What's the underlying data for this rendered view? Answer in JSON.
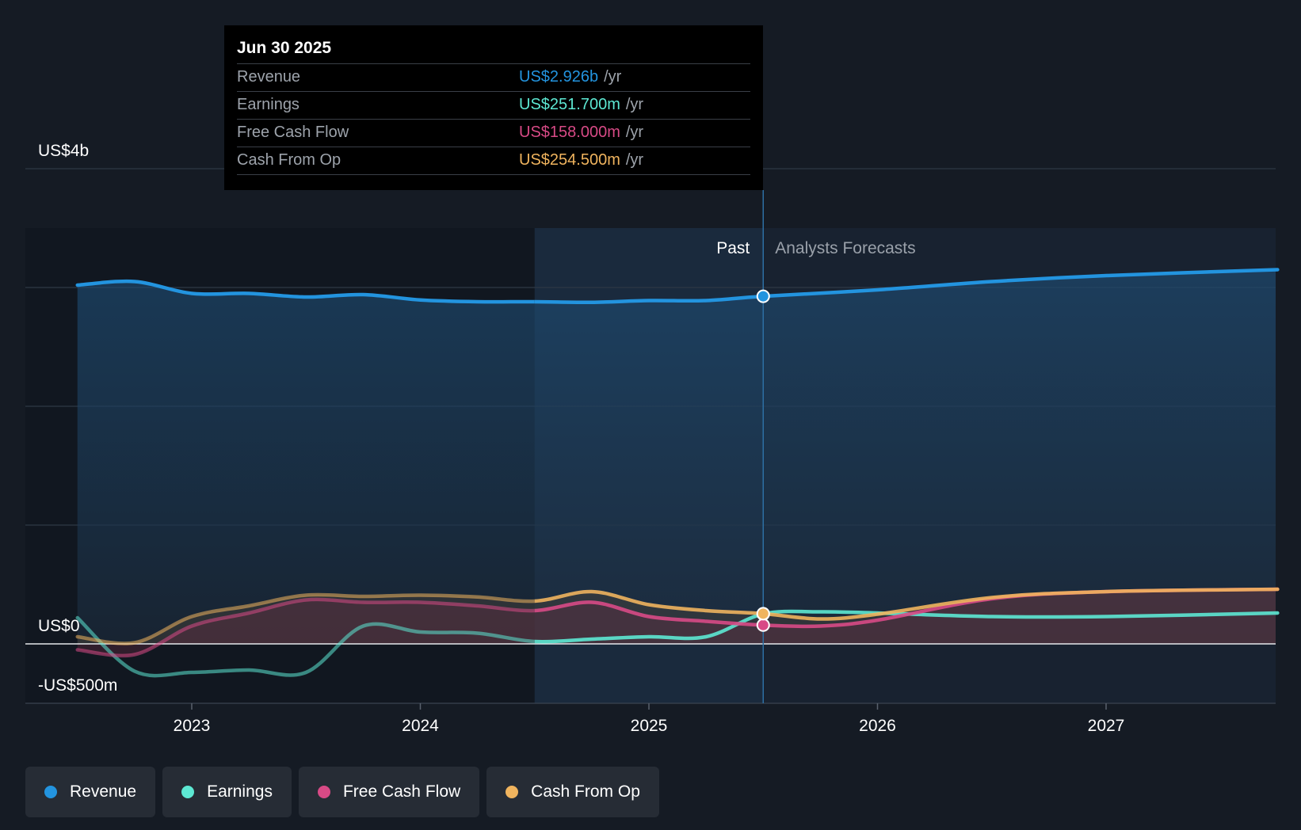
{
  "tooltip": {
    "date": "Jun 30 2025",
    "rows": [
      {
        "label": "Revenue",
        "value": "US$2.926b",
        "unit": "/yr",
        "color": "#2394df"
      },
      {
        "label": "Earnings",
        "value": "US$251.700m",
        "unit": "/yr",
        "color": "#5de8d3"
      },
      {
        "label": "Free Cash Flow",
        "value": "US$158.000m",
        "unit": "/yr",
        "color": "#d84a86"
      },
      {
        "label": "Cash From Op",
        "value": "US$254.500m",
        "unit": "/yr",
        "color": "#f0b45e"
      }
    ]
  },
  "chart_data": {
    "type": "line",
    "title": "",
    "xlabel": "",
    "ylabel": "",
    "y_tick_labels": [
      "US$4b",
      "US$0",
      "-US$500m"
    ],
    "x_tick_labels": [
      "2023",
      "2024",
      "2025",
      "2026",
      "2027"
    ],
    "ylim": [
      -500,
      4000
    ],
    "xlim": [
      2022.27,
      2027.75
    ],
    "grid": true,
    "zones": {
      "past_label": "Past",
      "forecast_label": "Analysts Forecasts",
      "divider_x": 2025.5,
      "highlight_start_x": 2024.5
    },
    "series": [
      {
        "name": "Revenue",
        "color": "#2394df",
        "points": [
          [
            2022.5,
            3020
          ],
          [
            2022.75,
            3050
          ],
          [
            2023.0,
            2950
          ],
          [
            2023.25,
            2950
          ],
          [
            2023.5,
            2920
          ],
          [
            2023.75,
            2940
          ],
          [
            2024.0,
            2895
          ],
          [
            2024.25,
            2880
          ],
          [
            2024.5,
            2880
          ],
          [
            2024.75,
            2875
          ],
          [
            2025.0,
            2890
          ],
          [
            2025.25,
            2890
          ],
          [
            2025.5,
            2926
          ],
          [
            2026.0,
            2980
          ],
          [
            2026.5,
            3050
          ],
          [
            2027.0,
            3100
          ],
          [
            2027.75,
            3150
          ]
        ]
      },
      {
        "name": "Earnings",
        "color": "#5de8d3",
        "points": [
          [
            2022.5,
            220
          ],
          [
            2022.75,
            -230
          ],
          [
            2023.0,
            -240
          ],
          [
            2023.25,
            -220
          ],
          [
            2023.5,
            -240
          ],
          [
            2023.75,
            150
          ],
          [
            2024.0,
            100
          ],
          [
            2024.25,
            90
          ],
          [
            2024.5,
            20
          ],
          [
            2024.75,
            40
          ],
          [
            2025.0,
            60
          ],
          [
            2025.25,
            60
          ],
          [
            2025.5,
            251.7
          ],
          [
            2025.75,
            270
          ],
          [
            2026.0,
            260
          ],
          [
            2026.5,
            230
          ],
          [
            2027.0,
            230
          ],
          [
            2027.75,
            260
          ]
        ]
      },
      {
        "name": "Free Cash Flow",
        "color": "#d84a86",
        "points": [
          [
            2022.5,
            -50
          ],
          [
            2022.75,
            -90
          ],
          [
            2023.0,
            150
          ],
          [
            2023.25,
            260
          ],
          [
            2023.5,
            370
          ],
          [
            2023.75,
            350
          ],
          [
            2024.0,
            350
          ],
          [
            2024.25,
            320
          ],
          [
            2024.5,
            280
          ],
          [
            2024.75,
            350
          ],
          [
            2025.0,
            230
          ],
          [
            2025.25,
            190
          ],
          [
            2025.5,
            158
          ],
          [
            2025.75,
            150
          ],
          [
            2026.0,
            200
          ],
          [
            2026.5,
            380
          ],
          [
            2027.0,
            440
          ],
          [
            2027.75,
            460
          ]
        ]
      },
      {
        "name": "Cash From Op",
        "color": "#f0b45e",
        "points": [
          [
            2022.5,
            60
          ],
          [
            2022.75,
            10
          ],
          [
            2023.0,
            230
          ],
          [
            2023.25,
            320
          ],
          [
            2023.5,
            410
          ],
          [
            2023.75,
            400
          ],
          [
            2024.0,
            410
          ],
          [
            2024.25,
            395
          ],
          [
            2024.5,
            360
          ],
          [
            2024.75,
            440
          ],
          [
            2025.0,
            330
          ],
          [
            2025.25,
            280
          ],
          [
            2025.5,
            254.5
          ],
          [
            2025.75,
            210
          ],
          [
            2026.0,
            250
          ],
          [
            2026.5,
            390
          ],
          [
            2027.0,
            440
          ],
          [
            2027.75,
            460
          ]
        ]
      }
    ],
    "highlight_x": 2025.5
  },
  "legend": [
    {
      "label": "Revenue",
      "color": "#2394df"
    },
    {
      "label": "Earnings",
      "color": "#5de8d3"
    },
    {
      "label": "Free Cash Flow",
      "color": "#d84a86"
    },
    {
      "label": "Cash From Op",
      "color": "#f0b45e"
    }
  ]
}
